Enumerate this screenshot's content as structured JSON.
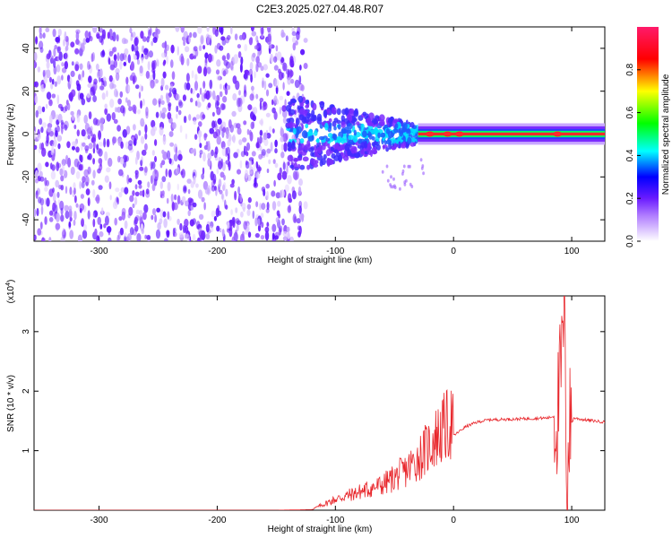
{
  "title": "C2E3.2025.027.04.48.R07",
  "chart_data": [
    {
      "type": "heatmap",
      "xlabel": "Height of straight line (km)",
      "ylabel": "Frequency (Hz)",
      "xlim": [
        -355,
        128
      ],
      "ylim": [
        -50,
        50
      ],
      "xticks": [
        -300,
        -200,
        -100,
        0,
        100
      ],
      "yticks": [
        -40,
        -20,
        0,
        20,
        40
      ],
      "colorbar": {
        "label": "Normalized spectral amplitude",
        "range": [
          0.0,
          1.0
        ],
        "ticks": [
          "0.0",
          "0.2",
          "0.4",
          "0.6",
          "0.8"
        ],
        "colors": [
          "#ffffff",
          "#7b2cff",
          "#0000ff",
          "#00ffff",
          "#00ff00",
          "#ffff00",
          "#ff0000",
          "#ff0066"
        ]
      },
      "regions": [
        {
          "x_range": [
            -355,
            -140
          ],
          "description_value": 0.15,
          "freq_spread": [
            -50,
            50
          ]
        },
        {
          "x_range": [
            -140,
            -30
          ],
          "description_value": 0.35,
          "freq_spread": [
            -12,
            12
          ]
        },
        {
          "x_range": [
            -30,
            128
          ],
          "description_value": 0.75,
          "freq_spread": [
            -2,
            2
          ]
        }
      ],
      "grid": false
    },
    {
      "type": "line",
      "xlabel": "Height of straight line (km)",
      "ylabel": "SNR (10 * v/v)",
      "yscale_note": "(x10^4)",
      "xlim": [
        -355,
        128
      ],
      "ylim": [
        0,
        3.6
      ],
      "xticks": [
        -300,
        -200,
        -100,
        0,
        100
      ],
      "yticks": [
        1,
        2,
        3
      ],
      "series": [
        {
          "color": "#e8262b",
          "x": [
            -355,
            -250,
            -150,
            -120,
            -100,
            -80,
            -60,
            -40,
            -25,
            -15,
            0,
            10,
            20,
            30,
            50,
            80,
            88,
            92,
            94,
            96,
            98,
            102,
            110,
            128
          ],
          "y": [
            0.0,
            0.0,
            0.0,
            0.01,
            0.15,
            0.25,
            0.35,
            0.55,
            0.8,
            1.0,
            1.25,
            1.4,
            1.48,
            1.52,
            1.53,
            1.55,
            1.6,
            2.6,
            3.6,
            0.3,
            1.4,
            1.55,
            1.52,
            1.48
          ]
        }
      ],
      "grid": false
    }
  ]
}
